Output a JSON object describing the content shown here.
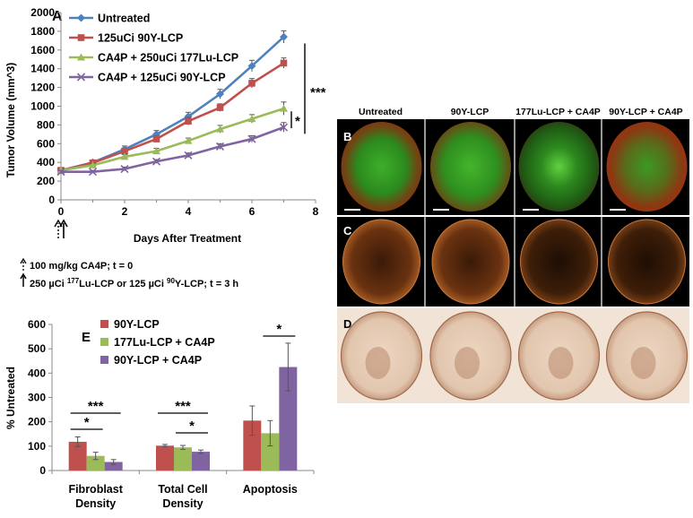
{
  "chart_data": [
    {
      "type": "line",
      "panel": "A",
      "title": "",
      "xlabel": "Days After Treatment",
      "ylabel": "Tumor Volume (mm^3)",
      "xlim": [
        0,
        8
      ],
      "ylim": [
        0,
        2000
      ],
      "x_ticks": [
        0,
        2,
        4,
        6,
        8
      ],
      "y_ticks": [
        0,
        200,
        400,
        600,
        800,
        1000,
        1200,
        1400,
        1600,
        1800,
        2000
      ],
      "x": [
        0,
        1,
        2,
        3,
        4,
        5,
        6,
        7
      ],
      "series": [
        {
          "name": "Untreated",
          "color": "#4f81bd",
          "marker": "diamond",
          "values": [
            315,
            400,
            540,
            700,
            890,
            1130,
            1430,
            1740
          ],
          "errors": [
            20,
            25,
            35,
            40,
            45,
            50,
            60,
            65
          ]
        },
        {
          "name": "125uCi 90Y-LCP",
          "color": "#c0504d",
          "marker": "square",
          "values": [
            315,
            395,
            520,
            650,
            840,
            985,
            1245,
            1460
          ],
          "errors": [
            20,
            25,
            30,
            35,
            40,
            40,
            50,
            55
          ]
        },
        {
          "name": "CA4P + 250uCi 177Lu-LCP",
          "color": "#9bbb59",
          "marker": "triangle",
          "values": [
            315,
            370,
            460,
            520,
            630,
            755,
            865,
            975
          ],
          "errors": [
            20,
            20,
            25,
            30,
            30,
            40,
            45,
            70
          ]
        },
        {
          "name": "CA4P + 125uCi 90Y-LCP",
          "color": "#8064a2",
          "marker": "x",
          "values": [
            300,
            300,
            330,
            410,
            475,
            570,
            650,
            775
          ],
          "errors": [
            15,
            15,
            20,
            20,
            25,
            30,
            35,
            50
          ]
        }
      ],
      "significance": [
        {
          "label": "***",
          "between": [
            "Untreated",
            "CA4P + 125uCi 90Y-LCP"
          ]
        },
        {
          "label": "*",
          "between": [
            "CA4P + 250uCi 177Lu-LCP",
            "CA4P + 125uCi 90Y-LCP"
          ]
        }
      ],
      "legend_position": "top-left"
    },
    {
      "type": "bar",
      "panel": "E",
      "ylabel": "% Untreated",
      "ylim": [
        0,
        600
      ],
      "y_ticks": [
        0,
        100,
        200,
        300,
        400,
        500,
        600
      ],
      "categories": [
        "Fibroblast Density",
        "Total Cell Density",
        "Apoptosis"
      ],
      "category_lines": [
        [
          "Fibroblast",
          "Density"
        ],
        [
          "Total Cell",
          "Density"
        ],
        [
          "Apoptosis"
        ]
      ],
      "series": [
        {
          "name": "90Y-LCP",
          "color": "#c0504d",
          "values": [
            118,
            102,
            205
          ],
          "errors": [
            20,
            5,
            60
          ]
        },
        {
          "name": "177Lu-LCP + CA4P",
          "color": "#9bbb59",
          "values": [
            60,
            95,
            153
          ],
          "errors": [
            15,
            8,
            52
          ]
        },
        {
          "name": "90Y-LCP + CA4P",
          "color": "#8064a2",
          "values": [
            35,
            77,
            425
          ],
          "errors": [
            10,
            7,
            98
          ]
        }
      ],
      "significance": [
        {
          "label": "***",
          "category": 0,
          "pair": [
            0,
            2
          ]
        },
        {
          "label": "*",
          "category": 0,
          "pair": [
            0,
            1
          ]
        },
        {
          "label": "***",
          "category": 1,
          "pair": [
            0,
            2
          ]
        },
        {
          "label": "*",
          "category": 1,
          "pair": [
            1,
            2
          ]
        },
        {
          "label": "*",
          "category": 2,
          "pair": [
            1,
            2
          ]
        }
      ],
      "legend_position": "top-left"
    }
  ],
  "labels": {
    "panel_a": "A",
    "panel_b": "B",
    "panel_c": "C",
    "panel_d": "D",
    "panel_e": "E",
    "dose_note_1": "100 mg/kg CA4P; t = 0",
    "dose_note_2_prefix": "250 µCi ",
    "dose_note_2_sup1": "177",
    "dose_note_2_mid": "Lu-LCP or 125 µCi ",
    "dose_note_2_sup2": "90",
    "dose_note_2_suffix": "Y-LCP; t = 3 h"
  },
  "images": {
    "column_headers": [
      "Untreated",
      "90Y-LCP",
      "177Lu-LCP + CA4P",
      "90Y-LCP + CA4P"
    ]
  },
  "colors": {
    "untreated": "#4f81bd",
    "y90": "#c0504d",
    "lu177": "#9bbb59",
    "ca4p_y90": "#8064a2"
  }
}
